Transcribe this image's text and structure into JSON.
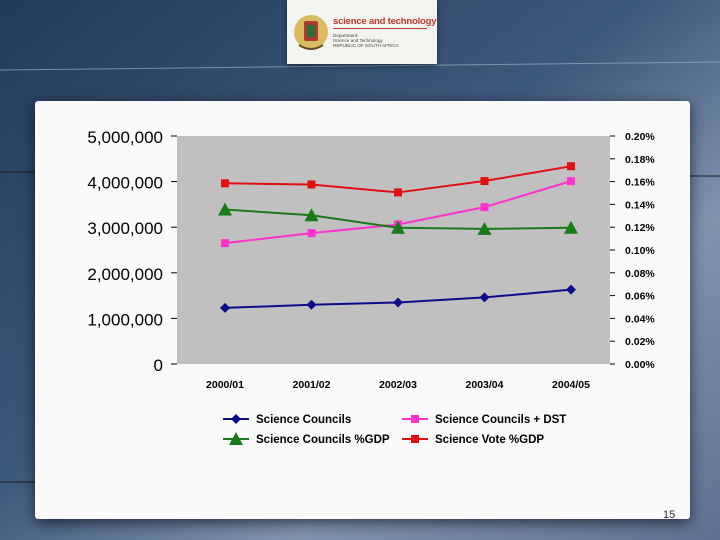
{
  "header": {
    "logo_title": "science and technology",
    "logo_lines": [
      "Department:",
      "Science and Technology",
      "REPUBLIC OF SOUTH AFRICA"
    ]
  },
  "page_number": "15",
  "colors": {
    "science_councils": "#0c0c8a",
    "science_councils_dst": "#ff33cc",
    "science_councils_gdp": "#187a18",
    "science_vote_gdp": "#e01010",
    "plot_bg": "#c0c0c0"
  },
  "chart_data": {
    "type": "line",
    "categories": [
      "2000/01",
      "2001/02",
      "2002/03",
      "2003/04",
      "2004/05"
    ],
    "left_axis": {
      "ylim": [
        0,
        5000000
      ],
      "ticks": [
        "0",
        "1,000,000",
        "2,000,000",
        "3,000,000",
        "4,000,000",
        "5,000,000"
      ]
    },
    "right_axis": {
      "ylim": [
        0,
        0.2
      ],
      "ticks": [
        "0.00%",
        "0.02%",
        "0.04%",
        "0.06%",
        "0.08%",
        "0.10%",
        "0.12%",
        "0.14%",
        "0.16%",
        "0.18%",
        "0.20%"
      ]
    },
    "series": [
      {
        "name": "Science Councils",
        "axis": "left",
        "marker": "diamond",
        "color": "#0c0c8a",
        "values": [
          1230000,
          1300000,
          1350000,
          1460000,
          1630000
        ]
      },
      {
        "name": "Science Councils + DST",
        "axis": "left",
        "marker": "square",
        "color": "#ff33cc",
        "values": [
          2650000,
          2870000,
          3060000,
          3440000,
          4010000
        ]
      },
      {
        "name": "Science Councils %GDP",
        "axis": "right",
        "marker": "triangle",
        "color": "#187a18",
        "values": [
          0.1355,
          0.1305,
          0.1195,
          0.1185,
          0.1195
        ]
      },
      {
        "name": "Science Vote %GDP",
        "axis": "right",
        "marker": "square",
        "color": "#e01010",
        "values": [
          0.1585,
          0.1575,
          0.1505,
          0.1605,
          0.1735
        ]
      }
    ],
    "legend_order": [
      "Science Councils",
      "Science Councils + DST",
      "Science Councils %GDP",
      "Science Vote %GDP"
    ],
    "grid": false,
    "legend_position": "bottom"
  }
}
